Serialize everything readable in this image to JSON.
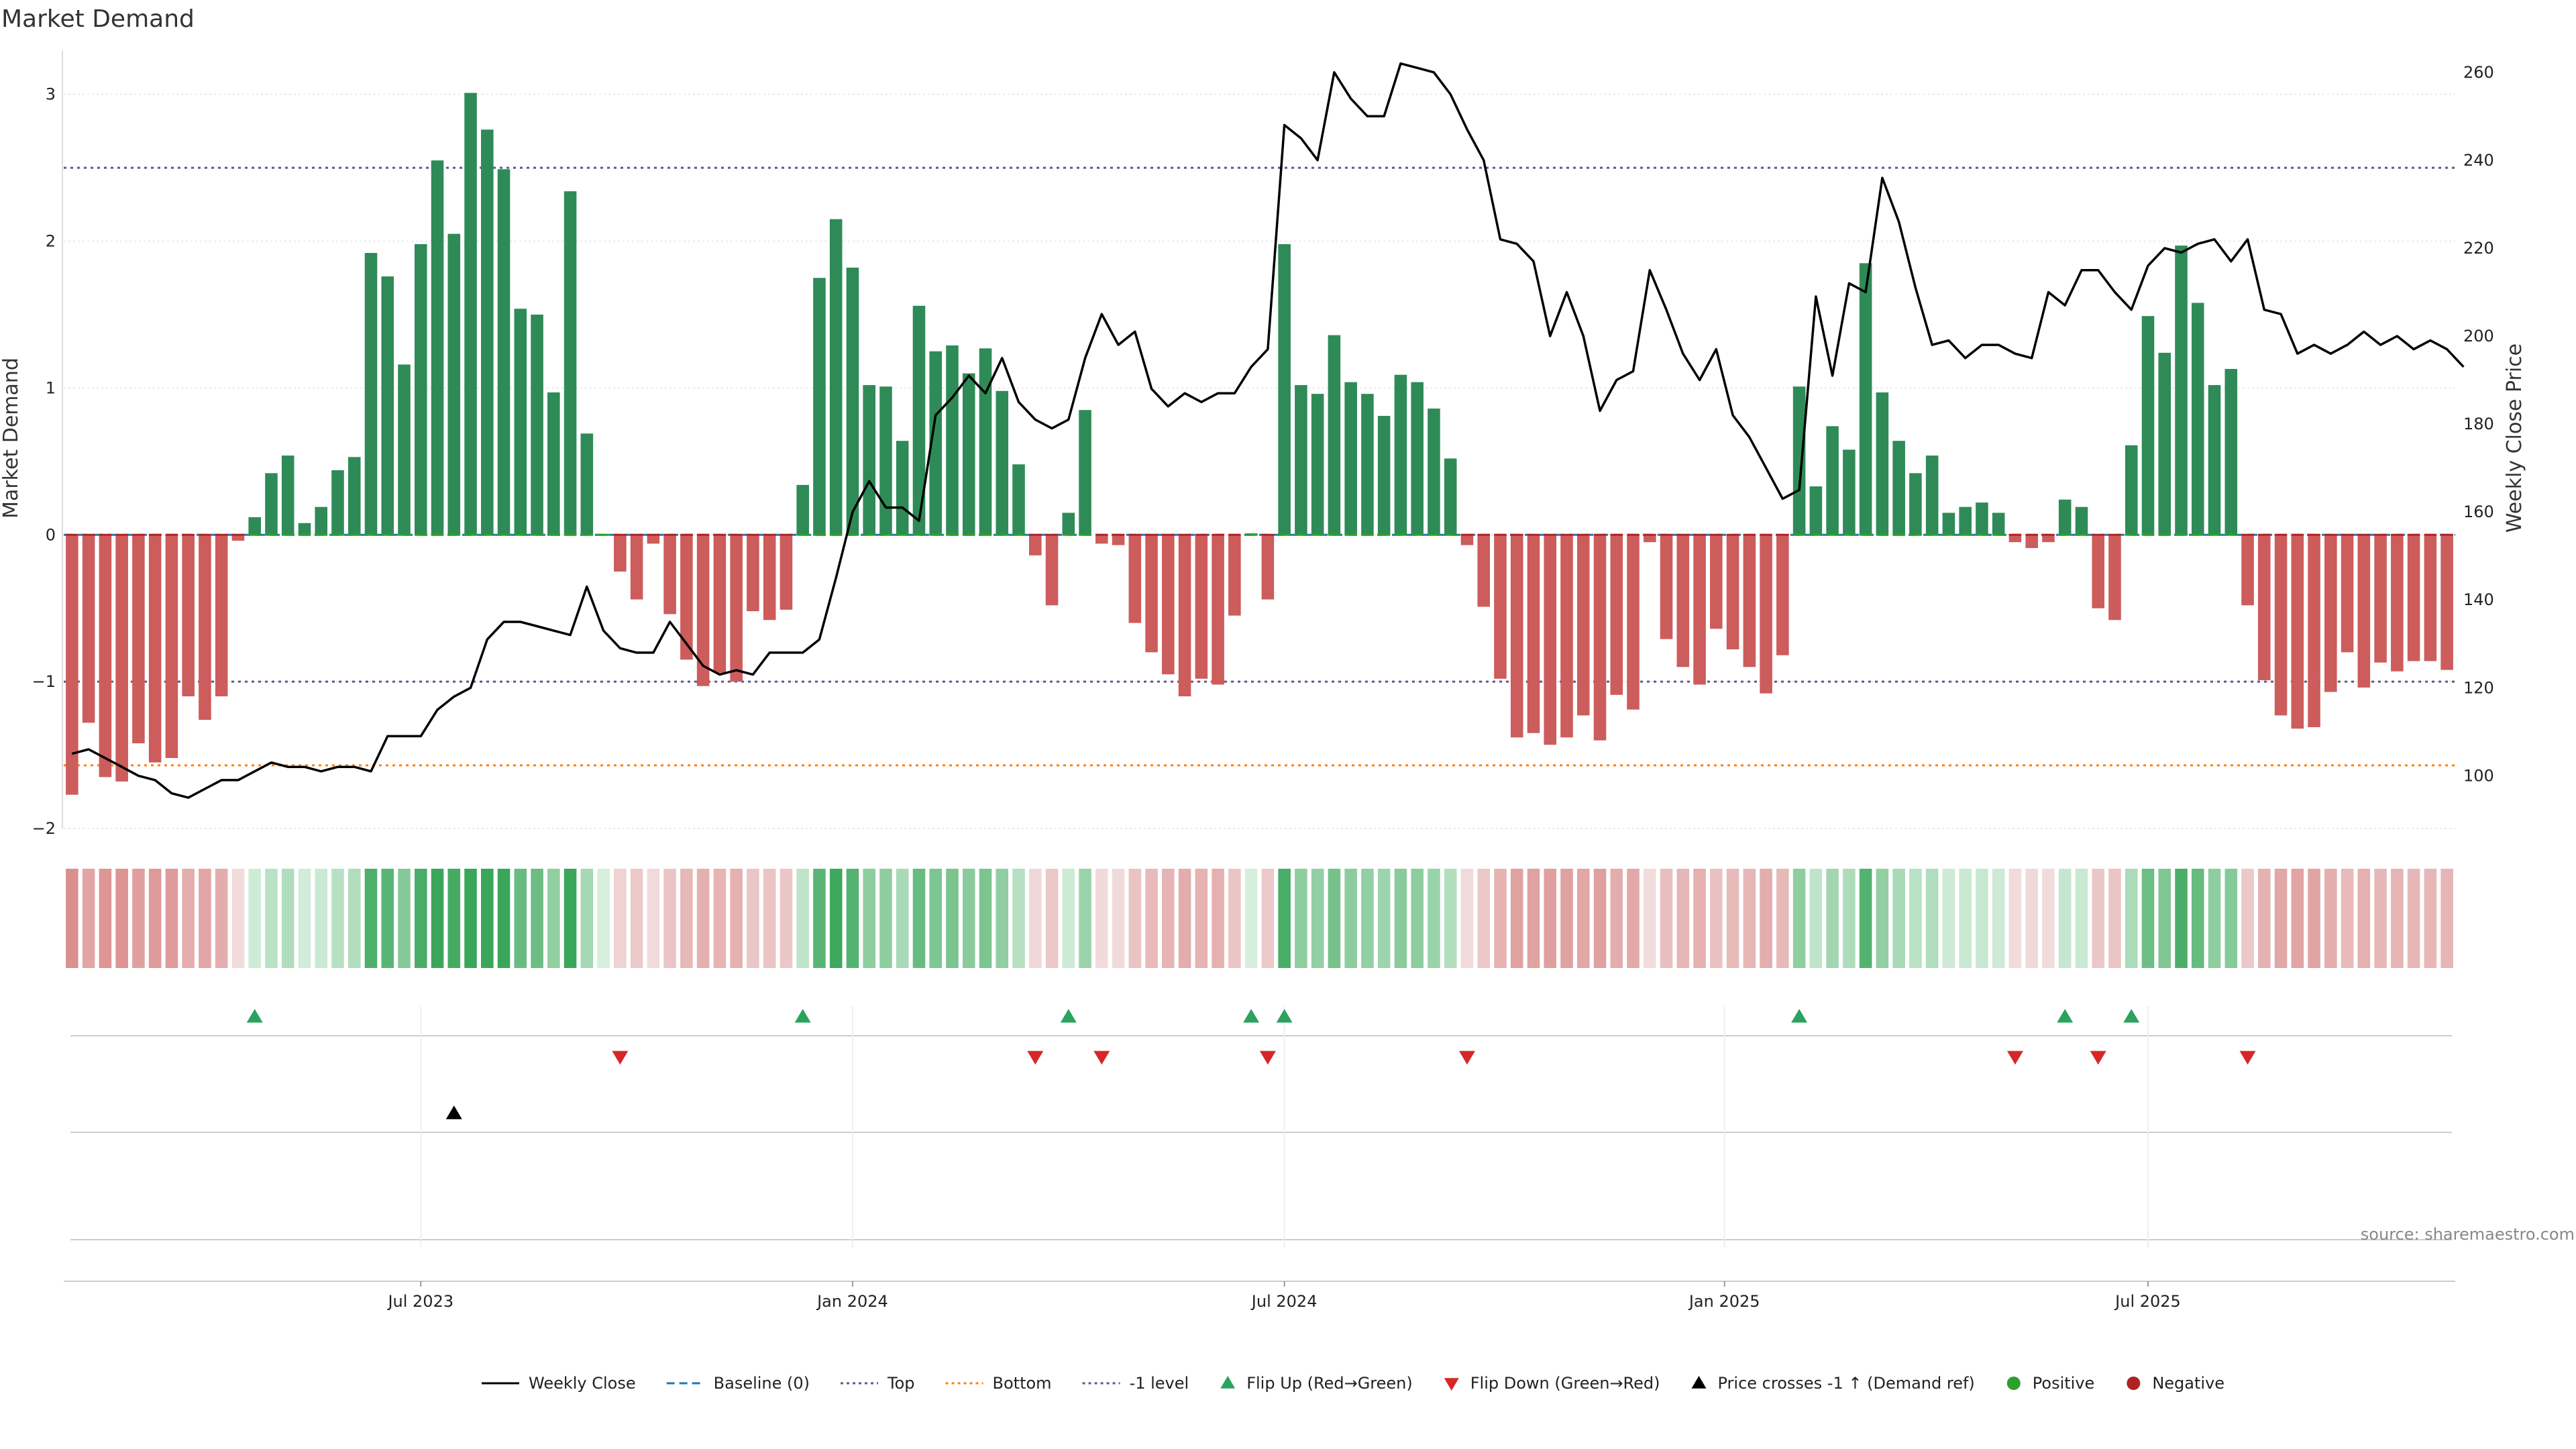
{
  "chart_data": {
    "type": "bar",
    "title": "Market Demand",
    "ylabel": "Market Demand",
    "y2label": "Weekly Close Price",
    "ylim": [
      -2,
      3.3
    ],
    "y2lim": [
      88,
      265
    ],
    "yticks": [
      3,
      2,
      1,
      0,
      -1,
      -2
    ],
    "yticklabels": [
      "3",
      "2",
      "1",
      "0",
      "−1",
      "−2"
    ],
    "y2ticks": [
      260,
      240,
      220,
      200,
      180,
      160,
      140,
      120,
      100
    ],
    "x_start": "2023-03-12",
    "x_step_days": 7,
    "xticks": [
      {
        "label": "Jul 2023",
        "week": 21
      },
      {
        "label": "Jan 2024",
        "week": 47
      },
      {
        "label": "Jul 2024",
        "week": 73
      },
      {
        "label": "Jan 2025",
        "week": 99.5
      },
      {
        "label": "Jul 2025",
        "week": 125
      }
    ],
    "reference_lines": [
      {
        "name": "Baseline (0)",
        "value": 0,
        "color": "#1f77b4",
        "style": "dashed"
      },
      {
        "name": "Top",
        "value": 2.5,
        "color": "#5a5a8a",
        "style": "dotted"
      },
      {
        "name": "Bottom",
        "value": -1.57,
        "color": "#ff7f0e",
        "style": "dotted"
      },
      {
        "name": "-1 level",
        "value": -1,
        "color": "#5a5a8a",
        "style": "dotted"
      }
    ],
    "series": [
      {
        "name": "Market Demand",
        "kind": "bar",
        "positive_color": "#2e8b57",
        "negative_color": "#cd5c5c",
        "values": [
          -1.77,
          -1.28,
          -1.65,
          -1.68,
          -1.42,
          -1.55,
          -1.52,
          -1.1,
          -1.26,
          -1.1,
          -0.04,
          0.12,
          0.42,
          0.54,
          0.08,
          0.19,
          0.44,
          0.53,
          1.92,
          1.76,
          1.16,
          1.98,
          2.55,
          2.05,
          3.01,
          2.76,
          2.49,
          1.54,
          1.5,
          0.97,
          2.34,
          0.69,
          0,
          -0.25,
          -0.44,
          -0.06,
          -0.54,
          -0.85,
          -1.03,
          -0.94,
          -1.0,
          -0.52,
          -0.58,
          -0.51,
          0.34,
          1.75,
          2.15,
          1.82,
          1.02,
          1.01,
          0.64,
          1.56,
          1.25,
          1.29,
          1.1,
          1.27,
          0.98,
          0.48,
          -0.14,
          -0.48,
          0.15,
          0.85,
          -0.06,
          -0.07,
          -0.6,
          -0.8,
          -0.95,
          -1.1,
          -0.98,
          -1.02,
          -0.55,
          0.01,
          -0.44,
          1.98,
          1.02,
          0.96,
          1.36,
          1.04,
          0.96,
          0.81,
          1.09,
          1.04,
          0.86,
          0.52,
          -0.07,
          -0.49,
          -0.98,
          -1.38,
          -1.35,
          -1.43,
          -1.38,
          -1.23,
          -1.4,
          -1.09,
          -1.19,
          -0.05,
          -0.71,
          -0.9,
          -1.02,
          -0.64,
          -0.78,
          -0.9,
          -1.08,
          -0.82,
          1.01,
          0.33,
          0.74,
          0.58,
          1.85,
          0.97,
          0.64,
          0.42,
          0.54,
          0.15,
          0.19,
          0.22,
          0.15,
          -0.05,
          -0.09,
          -0.05,
          0.24,
          0.19,
          -0.5,
          -0.58,
          0.61,
          1.49,
          1.24,
          1.97,
          1.58,
          1.02,
          1.13,
          -0.48,
          -0.99,
          -1.23,
          -1.32,
          -1.31,
          -1.07,
          -0.8,
          -1.04,
          -0.87,
          -0.93,
          -0.86,
          -0.86,
          -0.92
        ]
      },
      {
        "name": "Weekly Close",
        "kind": "line",
        "axis": "right",
        "color": "#000000",
        "values": [
          105,
          106,
          104,
          102,
          100,
          99,
          96,
          95,
          97,
          99,
          99,
          101,
          103,
          102,
          102,
          101,
          102,
          102,
          101,
          109,
          109,
          109,
          115,
          118,
          120,
          131,
          135,
          135,
          134,
          133,
          132,
          143,
          133,
          129,
          128,
          128,
          135,
          130,
          125,
          123,
          124,
          123,
          128,
          128,
          128,
          131,
          145,
          160,
          167,
          161,
          161,
          158,
          182,
          186,
          191,
          187,
          195,
          185,
          181,
          179,
          181,
          195,
          205,
          198,
          201,
          188,
          184,
          187,
          185,
          187,
          187,
          193,
          197,
          248,
          245,
          240,
          260,
          254,
          250,
          250,
          262,
          261,
          260,
          255,
          247,
          240,
          222,
          221,
          217,
          200,
          210,
          200,
          183,
          190,
          192,
          215,
          206,
          196,
          190,
          197,
          182,
          177,
          170,
          163,
          165,
          209,
          191,
          212,
          210,
          236,
          226,
          211,
          198,
          199,
          195,
          198,
          198,
          196,
          195,
          210,
          207,
          215,
          215,
          210,
          206,
          216,
          220,
          219,
          221,
          222,
          217,
          222,
          206,
          205,
          196,
          198,
          196,
          198,
          201,
          198,
          200,
          197,
          199,
          197,
          193
        ]
      }
    ],
    "flip_up_weeks": [
      11,
      44,
      60,
      71,
      73,
      104,
      120,
      124
    ],
    "flip_down_weeks": [
      33,
      58,
      62,
      72,
      84,
      117,
      122,
      131
    ],
    "price_cross_weeks": [
      23
    ],
    "legend": [
      {
        "label": "Weekly Close",
        "kind": "line",
        "color": "#000000"
      },
      {
        "label": "Baseline (0)",
        "kind": "dashed",
        "color": "#1f77b4"
      },
      {
        "label": "Top",
        "kind": "dotted",
        "color": "#5a5a8a"
      },
      {
        "label": "Bottom",
        "kind": "dotted",
        "color": "#ff7f0e"
      },
      {
        "label": "-1 level",
        "kind": "dotted",
        "color": "#5a5a8a"
      },
      {
        "label": "Flip Up (Red→Green)",
        "kind": "tri-up",
        "color": "#2ca25f"
      },
      {
        "label": "Flip Down (Green→Red)",
        "kind": "tri-down",
        "color": "#d62728"
      },
      {
        "label": "Price crosses -1 ↑ (Demand ref)",
        "kind": "tri-up",
        "color": "#000000"
      },
      {
        "label": "Positive",
        "kind": "dot",
        "color": "#2ca02c"
      },
      {
        "label": "Negative",
        "kind": "dot",
        "color": "#b22222"
      }
    ],
    "legend_placement": "bottom",
    "source": "source: sharemaestro.com"
  }
}
